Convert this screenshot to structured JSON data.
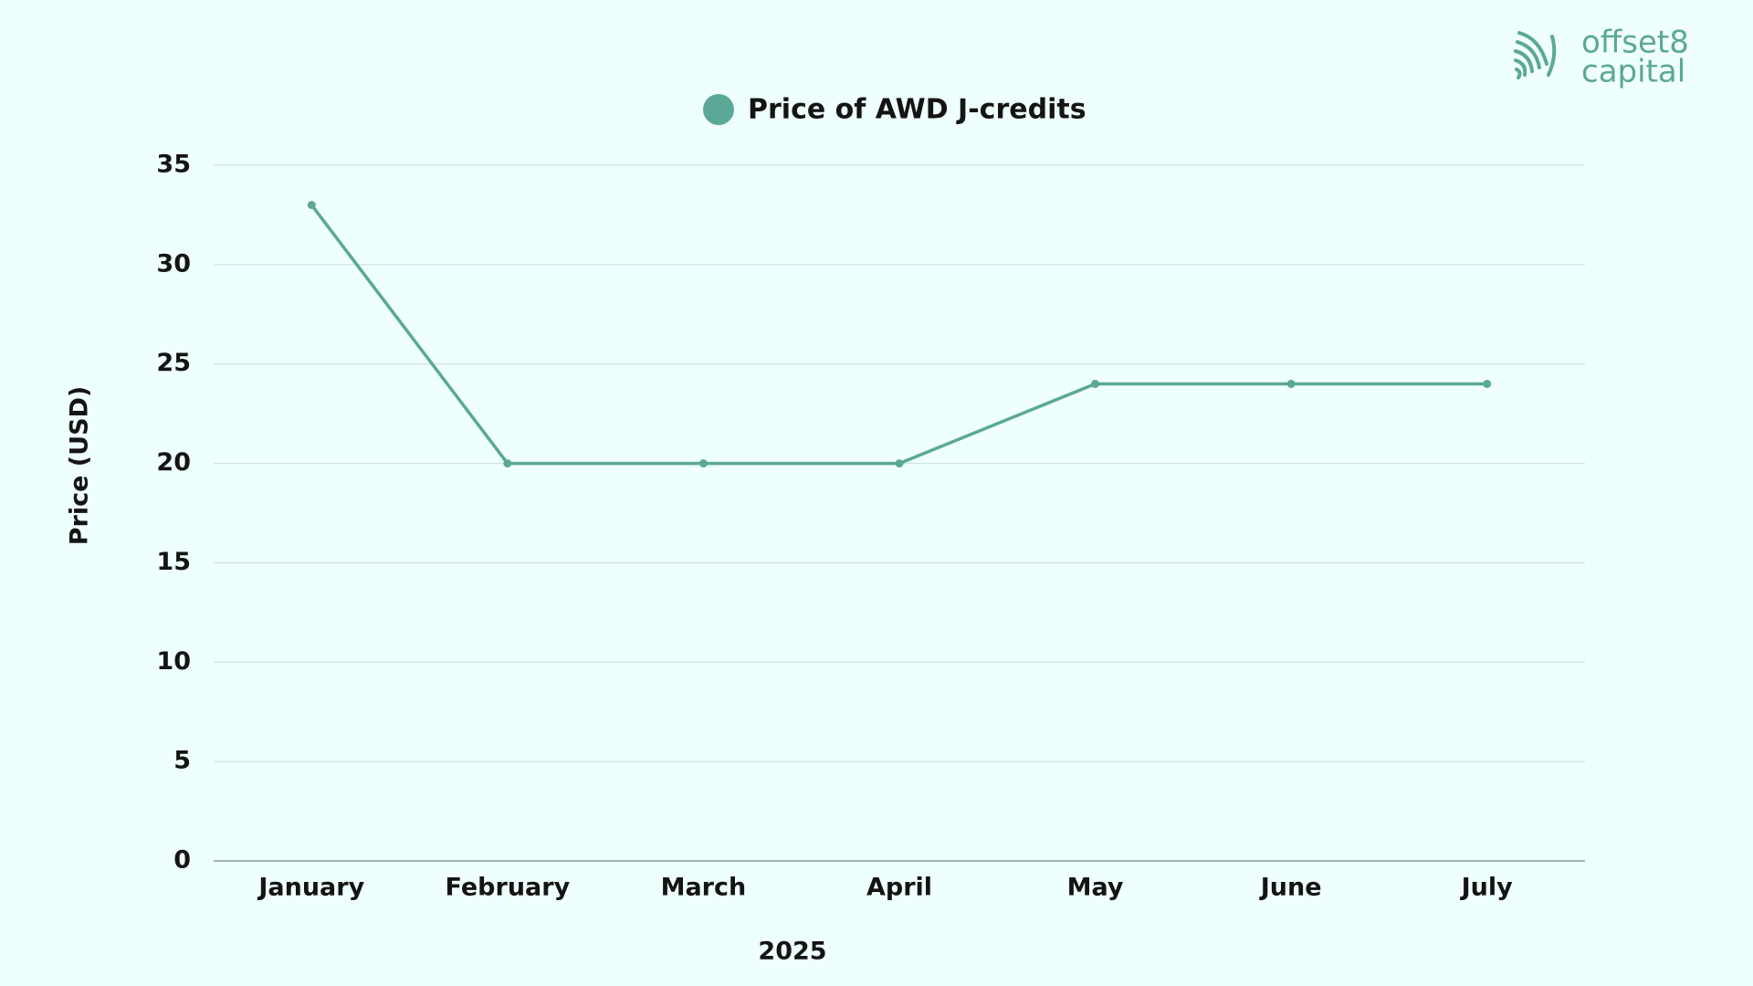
{
  "chart_data": {
    "type": "line",
    "series": [
      {
        "name": "Price of AWD J-credits",
        "color": "#5ba896",
        "values": [
          33,
          20,
          20,
          20,
          24,
          24,
          24
        ]
      }
    ],
    "categories": [
      "January",
      "February",
      "March",
      "April",
      "May",
      "June",
      "July"
    ],
    "x_label": "2025",
    "y_label": "Price (USD)",
    "ylim": [
      0,
      35
    ],
    "yticks": [
      0,
      5,
      10,
      15,
      20,
      25,
      30,
      35
    ],
    "grid": true,
    "legend": "top"
  },
  "logo": {
    "line1": "offset8",
    "line2": "capital"
  }
}
